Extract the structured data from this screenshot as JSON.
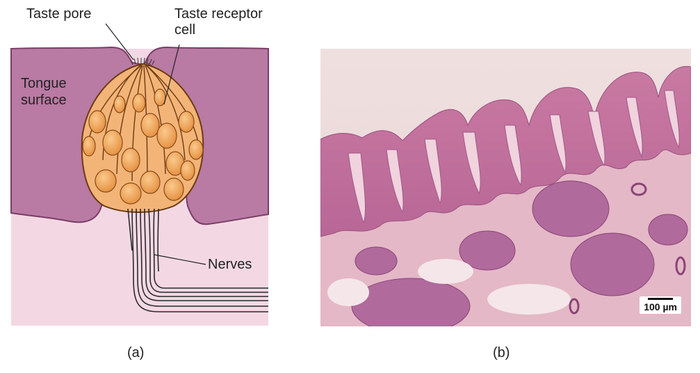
{
  "panel_a": {
    "labels": {
      "taste_pore": "Taste pore",
      "taste_receptor_cell": "Taste receptor\ncell",
      "tongue_surface": "Tongue\nsurface",
      "nerves": "Nerves"
    },
    "caption": "(a)"
  },
  "panel_b": {
    "scale_bar": "100 µm",
    "caption": "(b)"
  },
  "colors": {
    "tongue": "#b97aa3",
    "tongue_edge": "#7a3d66",
    "lower_tissue": "#f3d8e4",
    "bud": "#f3b478",
    "bud_edge": "#6b3a12",
    "nerve": "#2a2a2a"
  }
}
